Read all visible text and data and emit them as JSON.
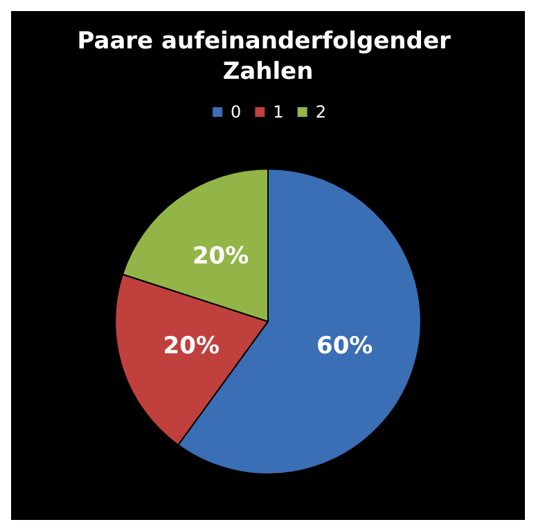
{
  "chart_data": {
    "type": "pie",
    "title": "Paare aufeinanderfolgender Zahlen",
    "categories": [
      "0",
      "1",
      "2"
    ],
    "values": [
      60,
      20,
      20
    ],
    "colors": [
      "#3a6eb5",
      "#c0403d",
      "#93b548"
    ],
    "value_labels": [
      "60%",
      "20%",
      "20%"
    ],
    "legend": "top"
  }
}
